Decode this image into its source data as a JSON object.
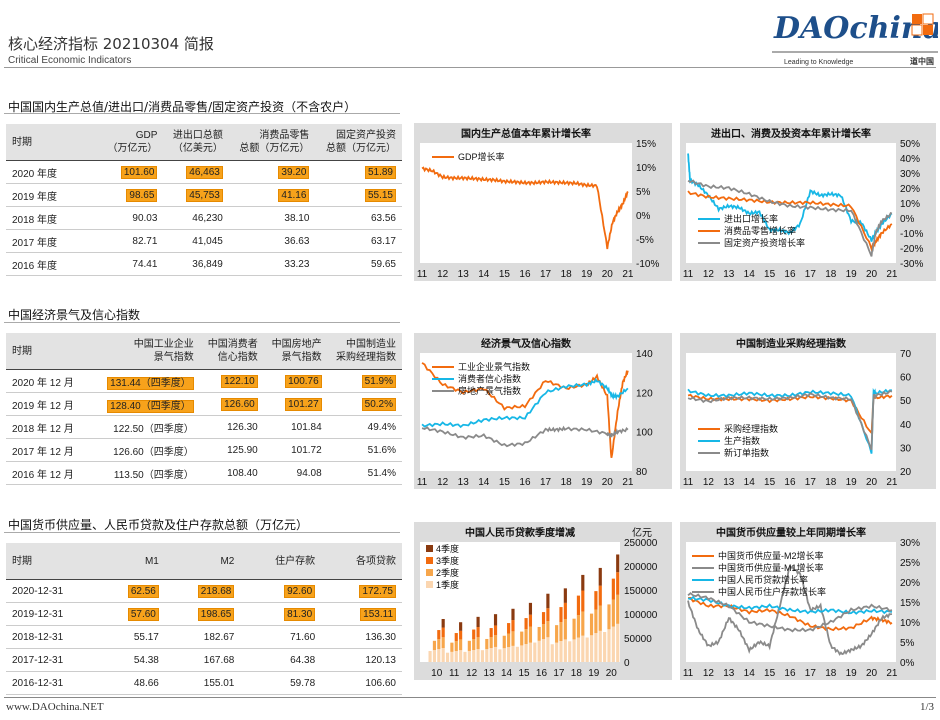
{
  "header": {
    "title": "核心经济指标 20210304 简报",
    "subtitle": "Critical Economic Indicators",
    "logo_text": "DAOchina",
    "logo_tagline": "Leading to Knowledge",
    "logo_mark": "道中国"
  },
  "sections": {
    "s1": "中国国内生产总值/进出口/消费品零售/固定资产投资（不含农户）",
    "s2": "中国经济景气及信心指数",
    "s3": "中国货币供应量、人民币贷款及住户存款总额（万亿元）"
  },
  "table1": {
    "headers": [
      "时期",
      "GDP\n（万亿元）",
      "进出口总额\n（亿美元）",
      "消费品零售\n总额（万亿元）",
      "固定资产投资\n总额（万亿元）"
    ],
    "rows": [
      [
        "2020 年度",
        "101.60",
        "46,463",
        "39.20",
        "51.89"
      ],
      [
        "2019 年度",
        "98.65",
        "45,753",
        "41.16",
        "55.15"
      ],
      [
        "2018 年度",
        "90.03",
        "46,230",
        "38.10",
        "63.56"
      ],
      [
        "2017 年度",
        "82.71",
        "41,045",
        "36.63",
        "63.17"
      ],
      [
        "2016 年度",
        "74.41",
        "36,849",
        "33.23",
        "59.65"
      ]
    ]
  },
  "table2": {
    "headers": [
      "时期",
      "中国工业企业\n景气指数",
      "中国消费者\n信心指数",
      "中国房地产\n景气指数",
      "中国制造业\n采购经理指数"
    ],
    "rows": [
      [
        "2020 年 12 月",
        "131.44（四季度）",
        "122.10",
        "100.76",
        "51.9%"
      ],
      [
        "2019 年 12 月",
        "128.40（四季度）",
        "126.60",
        "101.27",
        "50.2%"
      ],
      [
        "2018 年 12 月",
        "122.50（四季度）",
        "126.30",
        "101.84",
        "49.4%"
      ],
      [
        "2017 年 12 月",
        "126.60（四季度）",
        "125.90",
        "101.72",
        "51.6%"
      ],
      [
        "2016 年 12 月",
        "113.50（四季度）",
        "108.40",
        "94.08",
        "51.4%"
      ]
    ]
  },
  "table3": {
    "headers": [
      "时期",
      "M1",
      "M2",
      "住户存款",
      "各项贷款"
    ],
    "rows": [
      [
        "2020-12-31",
        "62.56",
        "218.68",
        "92.60",
        "172.75"
      ],
      [
        "2019-12-31",
        "57.60",
        "198.65",
        "81.30",
        "153.11"
      ],
      [
        "2018-12-31",
        "55.17",
        "182.67",
        "71.60",
        "136.30"
      ],
      [
        "2017-12-31",
        "54.38",
        "167.68",
        "64.38",
        "120.13"
      ],
      [
        "2016-12-31",
        "48.66",
        "155.01",
        "59.78",
        "106.60"
      ]
    ]
  },
  "footer": {
    "left": "www.DAOchina.NET",
    "right": "1/3"
  },
  "colors": {
    "orange": "#f26b0f",
    "cyan": "#17b7e6",
    "gray": "#8a8a8a",
    "highlight": "#f7a21b"
  },
  "chart_data": [
    {
      "type": "line",
      "title": "国内生产总值本年累计增长率",
      "x_ticks": [
        "11",
        "12",
        "13",
        "14",
        "15",
        "16",
        "17",
        "18",
        "19",
        "20",
        "21"
      ],
      "y_ticks": [
        "15%",
        "10%",
        "5%",
        "0%",
        "-5%",
        "-10%"
      ],
      "ylim": [
        -10,
        15
      ],
      "series": [
        {
          "name": "GDP增长率",
          "color": "#f26b0f",
          "x": [
            11,
            11.5,
            12,
            12.5,
            13,
            13.5,
            14,
            14.5,
            15,
            15.5,
            16,
            16.5,
            17,
            17.5,
            18,
            18.5,
            19,
            19.5,
            20,
            20.25,
            20.5,
            20.75,
            21
          ],
          "y": [
            9.7,
            9.2,
            7.9,
            7.7,
            7.7,
            7.6,
            7.4,
            7.3,
            7.0,
            6.9,
            6.7,
            6.7,
            6.9,
            6.8,
            6.7,
            6.6,
            6.2,
            6.1,
            -6.8,
            -1.6,
            0.7,
            2.3,
            4.9
          ]
        }
      ]
    },
    {
      "type": "line",
      "title": "进出口、消费及投资本年累计增长率",
      "x_ticks": [
        "11",
        "12",
        "13",
        "14",
        "15",
        "16",
        "17",
        "18",
        "19",
        "20",
        "21"
      ],
      "y_ticks": [
        "50%",
        "40%",
        "30%",
        "20%",
        "10%",
        "0%",
        "-10%",
        "-20%",
        "-30%"
      ],
      "ylim": [
        -30,
        50
      ],
      "series": [
        {
          "name": "进出口增长率",
          "color": "#17b7e6",
          "x": [
            11,
            11.1,
            11.5,
            12,
            12.5,
            13,
            13.5,
            14,
            14.5,
            15,
            15.5,
            16,
            16.5,
            17,
            17.5,
            18,
            18.5,
            19,
            19.5,
            20,
            20.2,
            20.5,
            21
          ],
          "y": [
            43,
            25,
            22,
            15,
            6,
            8,
            7,
            3,
            4,
            -8,
            -8,
            -10,
            -4,
            18,
            15,
            16,
            15,
            -2,
            -3,
            -15,
            -10,
            -4,
            3
          ]
        },
        {
          "name": "消费品零售增长率",
          "color": "#f26b0f",
          "x": [
            11,
            12,
            13,
            14,
            15,
            16,
            17,
            18,
            19,
            20,
            20.2,
            20.5,
            21
          ],
          "y": [
            17,
            14,
            13,
            12,
            10.5,
            10.2,
            10.3,
            9,
            8,
            -20,
            -16,
            -10,
            -4
          ]
        },
        {
          "name": "固定资产投资增长率",
          "color": "#8a8a8a",
          "x": [
            11,
            12,
            13,
            14,
            15,
            16,
            17,
            18,
            19,
            20,
            20.2,
            20.5,
            21
          ],
          "y": [
            25,
            21,
            20,
            16,
            11,
            8,
            7,
            5.5,
            5,
            -25,
            -10,
            -2,
            3
          ]
        }
      ]
    },
    {
      "type": "line",
      "title": "经济景气及信心指数",
      "x_ticks": [
        "11",
        "12",
        "13",
        "14",
        "15",
        "16",
        "17",
        "18",
        "19",
        "20",
        "21"
      ],
      "y_ticks": [
        "140",
        "120",
        "100",
        "80"
      ],
      "ylim": [
        80,
        140
      ],
      "series": [
        {
          "name": "工业企业景气指数",
          "color": "#f26b0f",
          "x": [
            11,
            12,
            13,
            14,
            15,
            16,
            17,
            18,
            19,
            19.5,
            20,
            20.2,
            20.5,
            20.75,
            21
          ],
          "y": [
            135,
            124,
            120,
            122,
            112,
            113,
            126,
            122,
            124,
            128,
            118,
            86,
            110,
            125,
            131
          ]
        },
        {
          "name": "消费者信心指数",
          "color": "#17b7e6",
          "x": [
            11,
            12,
            13,
            14,
            15,
            16,
            17,
            18,
            19,
            19.5,
            20,
            20.25,
            20.5,
            21
          ],
          "y": [
            103,
            104,
            103,
            106,
            107,
            107,
            120,
            123,
            124,
            126,
            122,
            118,
            118,
            122
          ]
        },
        {
          "name": "房地产景气指数",
          "color": "#8a8a8a",
          "x": [
            11,
            12,
            13,
            14,
            15,
            16,
            17,
            17.5,
            18,
            19,
            20,
            20.2,
            20.5,
            21
          ],
          "y": [
            102,
            100,
            97,
            98,
            93,
            94,
            101,
            101,
            101.5,
            101,
            99,
            98,
            100,
            101
          ]
        }
      ]
    },
    {
      "type": "line",
      "title": "中国制造业采购经理指数",
      "x_ticks": [
        "11",
        "12",
        "13",
        "14",
        "15",
        "16",
        "17",
        "18",
        "19",
        "20",
        "21"
      ],
      "y_ticks": [
        "70",
        "60",
        "50",
        "40",
        "30",
        "20"
      ],
      "ylim": [
        20,
        70
      ],
      "series": [
        {
          "name": "采购经理指数",
          "color": "#f26b0f",
          "x": [
            11,
            12,
            13,
            14,
            15,
            16,
            17,
            18,
            19,
            20,
            20.1,
            20.2,
            21
          ],
          "y": [
            52,
            50.5,
            50.5,
            50.5,
            49.8,
            50.5,
            51.5,
            50.8,
            49.8,
            35.7,
            52,
            51,
            51.9
          ]
        },
        {
          "name": "生产指数",
          "color": "#17b7e6",
          "x": [
            11,
            12,
            13,
            14,
            15,
            16,
            17,
            18,
            19,
            20,
            20.1,
            20.2,
            21
          ],
          "y": [
            54,
            52,
            52,
            53,
            52,
            52,
            53.5,
            53,
            52,
            27.8,
            54,
            53,
            54.2
          ]
        },
        {
          "name": "新订单指数",
          "color": "#8a8a8a",
          "x": [
            11,
            12,
            13,
            14,
            15,
            16,
            17,
            18,
            19,
            20,
            20.1,
            20.2,
            21
          ],
          "y": [
            51,
            49.5,
            51,
            51,
            50.5,
            51,
            52.5,
            51,
            50.5,
            29.3,
            52,
            52,
            53.6
          ]
        }
      ]
    },
    {
      "type": "bar",
      "title": "中国人民币贷款季度增减",
      "unit_label": "亿元",
      "categories": [
        "10",
        "11",
        "12",
        "13",
        "14",
        "15",
        "16",
        "17",
        "18",
        "19",
        "20"
      ],
      "y_ticks": [
        "250000",
        "200000",
        "150000",
        "100000",
        "50000",
        "0"
      ],
      "ylim": [
        0,
        250000
      ],
      "series": [
        {
          "name": "1季度",
          "color": "#fbd6b0",
          "values": [
            26000,
            22000,
            24000,
            28000,
            30000,
            36000,
            46000,
            42000,
            49000,
            58000,
            71000
          ]
        },
        {
          "name": "2季度",
          "color": "#f7a64b",
          "values": [
            20000,
            20000,
            22000,
            22000,
            27000,
            30000,
            30000,
            38000,
            45000,
            47000,
            54000
          ]
        },
        {
          "name": "3季度",
          "color": "#f26b0f",
          "values": [
            18000,
            16000,
            19000,
            18000,
            21000,
            22000,
            24000,
            30000,
            39000,
            37000,
            42000
          ]
        },
        {
          "name": "4季度",
          "color": "#8a3a10",
          "values": [
            16000,
            16000,
            19000,
            21000,
            21000,
            22000,
            27000,
            27000,
            29000,
            33000,
            33000
          ]
        }
      ]
    },
    {
      "type": "line",
      "title": "中国货币供应量较上年同期增长率",
      "x_ticks": [
        "11",
        "12",
        "13",
        "14",
        "15",
        "16",
        "17",
        "18",
        "19",
        "20",
        "21"
      ],
      "y_ticks": [
        "30%",
        "25%",
        "20%",
        "15%",
        "10%",
        "5%",
        "0%"
      ],
      "ylim": [
        0,
        30
      ],
      "series": [
        {
          "name": "中国货币供应量-M2增长率",
          "color": "#f26b0f",
          "x": [
            11,
            12,
            13,
            14,
            15,
            16,
            17,
            18,
            19,
            20,
            20.5,
            21
          ],
          "y": [
            16,
            14,
            14,
            12.5,
            13,
            11.5,
            9,
            8.2,
            8.5,
            11,
            10.5,
            9.8
          ]
        },
        {
          "name": "中国货币供应量-M1增长率",
          "color": "#8a8a8a",
          "x": [
            11,
            11.5,
            12,
            12.5,
            13,
            13.5,
            14,
            14.5,
            15,
            15.5,
            16,
            16.5,
            17,
            17.5,
            18,
            18.5,
            19,
            19.5,
            20,
            20.5,
            21
          ],
          "y": [
            15,
            8,
            4,
            5,
            11,
            8,
            3,
            5,
            4,
            14,
            24,
            22,
            13,
            14,
            4,
            2,
            3,
            4,
            7,
            11,
            12
          ]
        },
        {
          "name": "中国人民币贷款增长率",
          "color": "#17b7e6",
          "x": [
            11,
            12,
            13,
            14,
            15,
            16,
            17,
            18,
            19,
            20,
            21
          ],
          "y": [
            16,
            15.5,
            14,
            13.5,
            14,
            13,
            12.5,
            13,
            12.3,
            12.8,
            12.5
          ]
        },
        {
          "name": "中国人民币住户存款增长率",
          "color": "#8a8a8a",
          "x": [
            11,
            12,
            13,
            14,
            15,
            16,
            17,
            18,
            19,
            20,
            21
          ],
          "y": [
            17,
            16,
            14,
            10,
            9,
            8,
            8,
            10,
            13,
            14,
            13
          ]
        }
      ]
    }
  ]
}
